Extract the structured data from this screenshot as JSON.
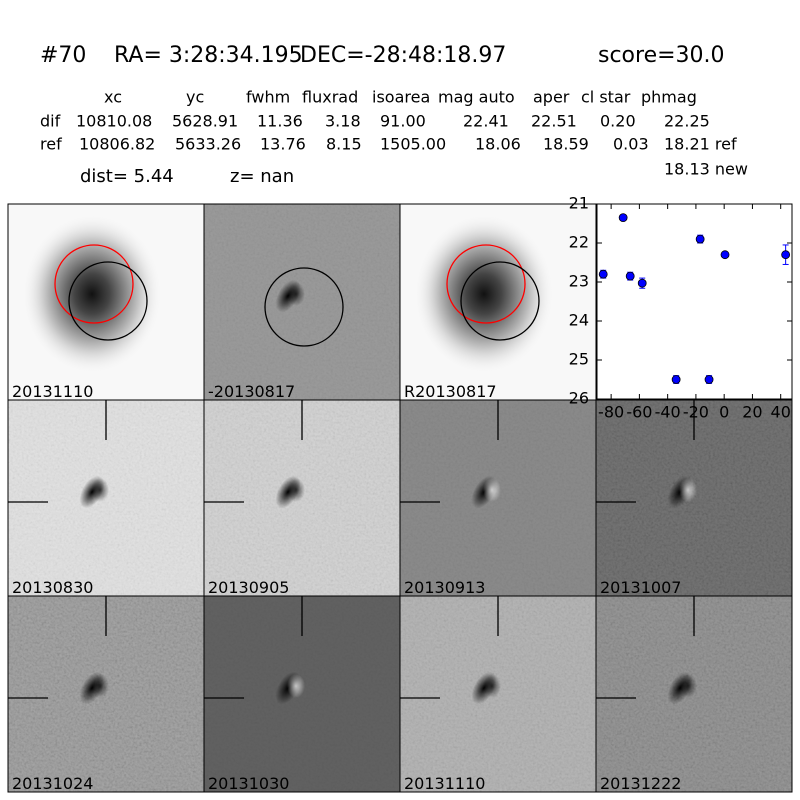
{
  "header": {
    "id": "#70",
    "ra": "RA= 3:28:34.195",
    "dec": "DEC=-28:48:18.97",
    "score": "score=30.0"
  },
  "table": {
    "columns": [
      "xc",
      "yc",
      "fwhm",
      "fluxrad",
      "isoarea",
      "mag auto",
      "aper",
      "cl star",
      "phmag"
    ],
    "rows": [
      [
        "dif",
        "10810.08",
        "5628.91",
        "11.36",
        "3.18",
        "91.00",
        "22.41",
        "22.51",
        "0.20",
        "22.25"
      ],
      [
        "ref",
        "10806.82",
        "5633.26",
        "13.76",
        "8.15",
        "1505.00",
        "18.06",
        "18.59",
        "0.03",
        "18.21 ref"
      ]
    ],
    "extra": "18.13 new"
  },
  "dist": "dist=  5.44",
  "z": "z=   nan",
  "panels": [
    {
      "label": "20131110"
    },
    {
      "label": "-20130817"
    },
    {
      "label": "R20130817"
    },
    {
      "label": "20130830"
    },
    {
      "label": "20130905"
    },
    {
      "label": "20130913"
    },
    {
      "label": "20131007"
    },
    {
      "label": "20131024"
    },
    {
      "label": "20131030"
    },
    {
      "label": "20131110",
      "color": "#ff0000"
    },
    {
      "label": "20131222"
    }
  ],
  "chart_data": {
    "type": "scatter",
    "color": "#0000ff",
    "x": [
      -85.6,
      -71.5,
      -66.5,
      -58,
      -34,
      -17,
      -10.7,
      0.6,
      43.5
    ],
    "values": [
      22.8,
      21.35,
      22.85,
      23.03,
      25.5,
      21.9,
      25.5,
      22.3,
      22.3
    ],
    "errors": [
      0.1,
      0.05,
      0.1,
      0.13,
      0.1,
      0.1,
      0.1,
      0.05,
      0.25
    ],
    "xlim": [
      -90,
      48
    ],
    "xticks": [
      -80,
      -60,
      -40,
      -20,
      0,
      20,
      40
    ],
    "ylim": [
      26,
      21
    ],
    "yticks": [
      21,
      22,
      23,
      24,
      25,
      26
    ]
  }
}
